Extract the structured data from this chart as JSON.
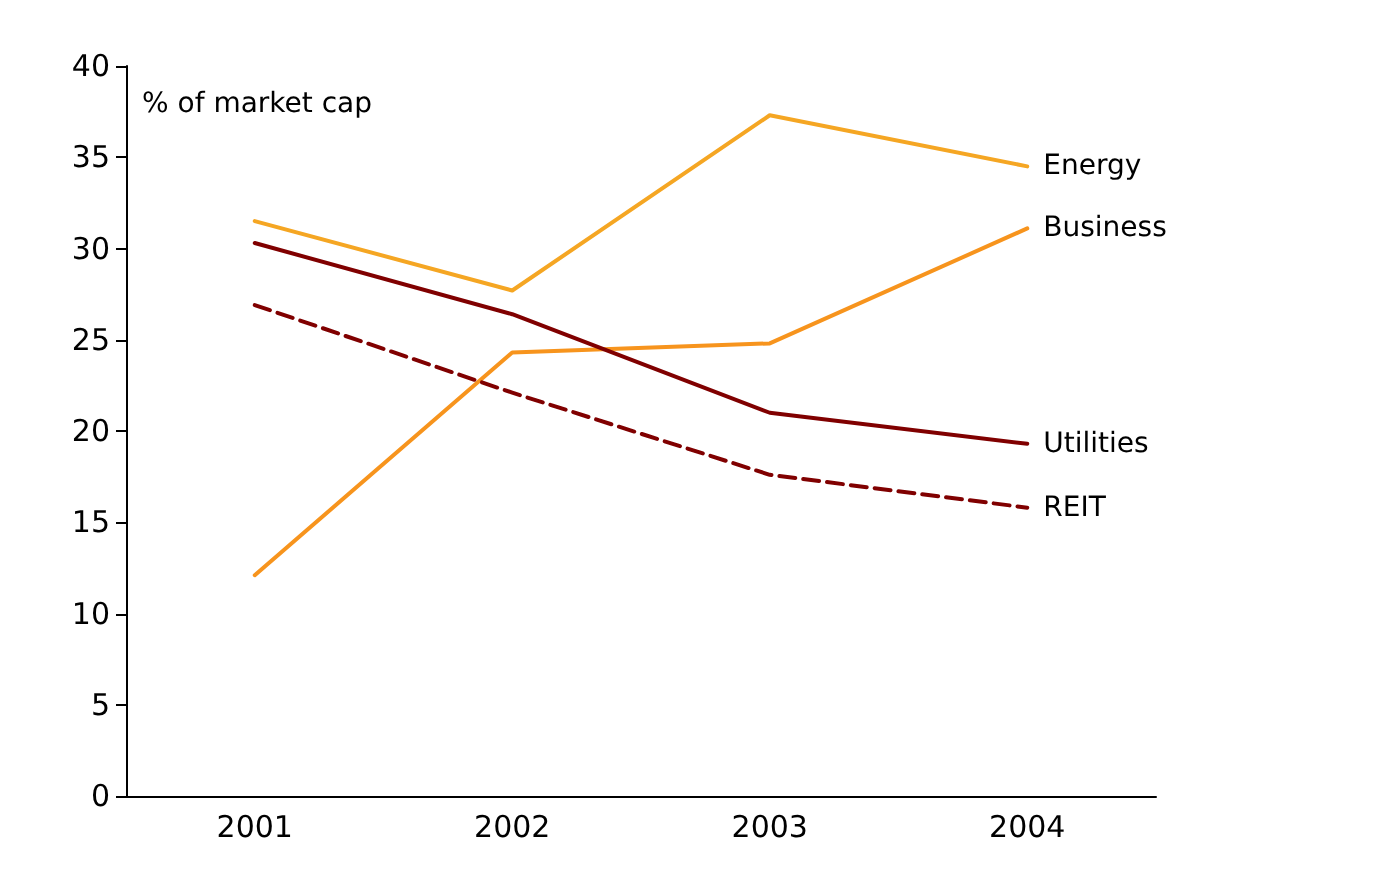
{
  "chart_data": {
    "type": "line",
    "ylabel": "% of market cap",
    "categories": [
      "2001",
      "2002",
      "2003",
      "2004"
    ],
    "series": [
      {
        "name": "Energy",
        "color": "#f5a623",
        "values": [
          31.5,
          27.7,
          37.3,
          34.5
        ]
      },
      {
        "name": "Business",
        "color": "#f7941d",
        "values": [
          12.1,
          24.3,
          24.8,
          31.1
        ]
      },
      {
        "name": "Utilities",
        "color": "#800000",
        "values": [
          30.3,
          26.4,
          21.0,
          19.3
        ]
      },
      {
        "name": "REIT",
        "color": "#800000",
        "values": [
          26.9,
          22.1,
          17.6,
          15.8
        ],
        "line_style": "dashed"
      }
    ],
    "ylim": [
      0,
      40
    ],
    "yticks": [
      0,
      5,
      10,
      15,
      20,
      25,
      30,
      35,
      40
    ],
    "grid": false,
    "legend": false,
    "marker": "none"
  }
}
